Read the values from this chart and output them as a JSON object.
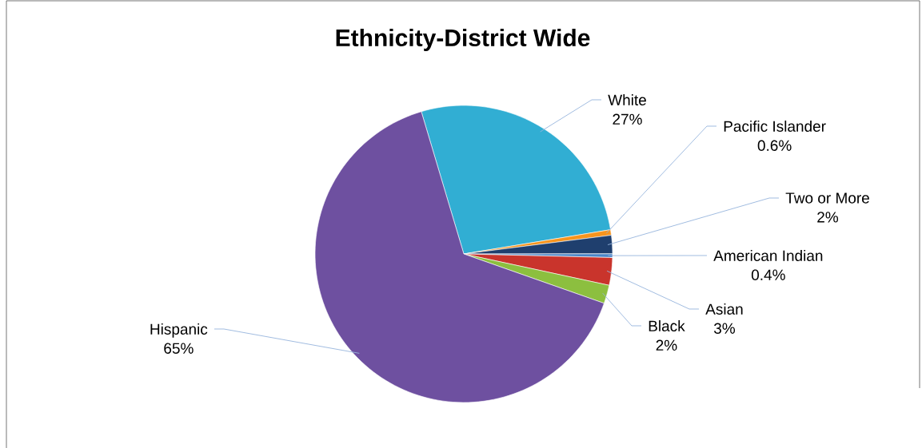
{
  "chart_data": {
    "type": "pie",
    "title": "Ethnicity-District Wide",
    "categories": [
      "White",
      "Pacific Islander",
      "Two or More",
      "American Indian",
      "Asian",
      "Black",
      "Hispanic"
    ],
    "values": [
      27,
      0.6,
      2,
      0.4,
      3,
      2,
      65
    ],
    "value_labels": [
      "27%",
      "0.6%",
      "2%",
      "0.4%",
      "3%",
      "2%",
      "65%"
    ],
    "colors": [
      "#31aed3",
      "#f7941d",
      "#1f3f6e",
      "#4a86c8",
      "#c9342c",
      "#8cbf3f",
      "#6e50a0"
    ]
  }
}
